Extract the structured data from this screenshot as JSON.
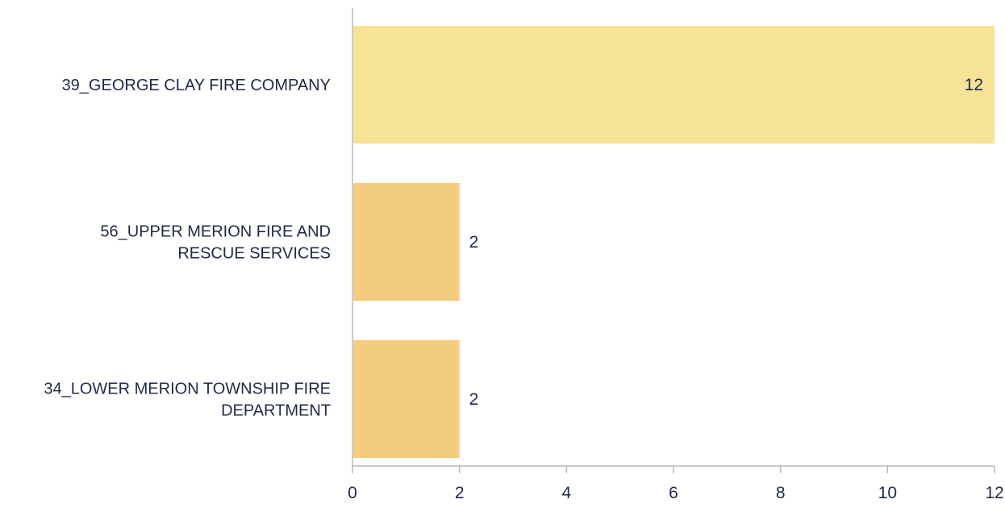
{
  "chart_data": {
    "type": "bar",
    "orientation": "horizontal",
    "categories": [
      [
        "39_GEORGE CLAY FIRE COMPANY"
      ],
      [
        "56_UPPER MERION FIRE AND",
        "RESCUE SERVICES"
      ],
      [
        "34_LOWER MERION TOWNSHIP FIRE",
        "DEPARTMENT"
      ]
    ],
    "values": [
      12,
      2,
      2
    ],
    "bar_colors": [
      "#f7e395",
      "#f3cd7d",
      "#f3cd7d"
    ],
    "data_labels": [
      "12",
      "2",
      "2"
    ],
    "title": "",
    "xlabel": "",
    "ylabel": "",
    "xlim": [
      0,
      12
    ],
    "x_ticks": [
      0,
      2,
      4,
      6,
      8,
      10,
      12
    ],
    "x_tick_labels": [
      "0",
      "2",
      "4",
      "6",
      "8",
      "10",
      "12"
    ],
    "grid": false,
    "legend": "none",
    "axis_color": "#b8b8b8"
  }
}
